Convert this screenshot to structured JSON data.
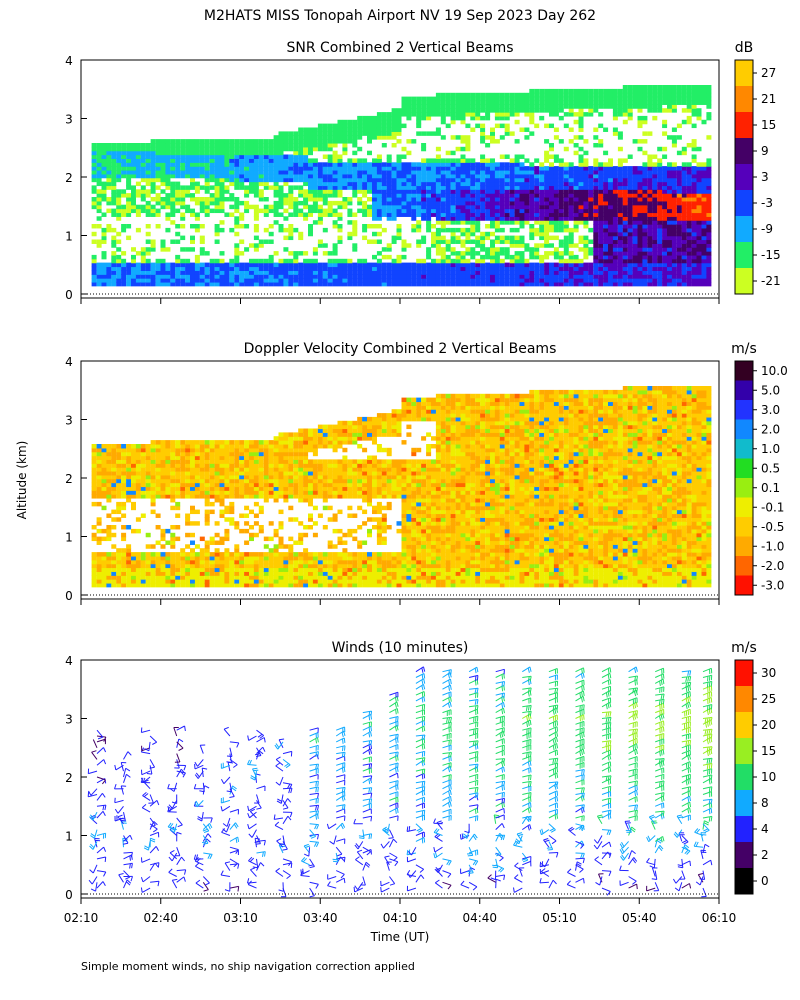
{
  "figure_title": "M2HATS MISS Tonopah Airport NV  19 Sep 2023 Day 262",
  "y_axis_label": "Altitude (km)",
  "x_axis_label": "Time (UT)",
  "footnote": "Simple moment winds, no ship navigation correction applied",
  "chart_data": [
    {
      "type": "heatmap",
      "title": "SNR Combined 2 Vertical Beams",
      "units": "dB",
      "ylabel": "Altitude (km)",
      "ylim": [
        0,
        4
      ],
      "yticks": [
        "0",
        "1",
        "2",
        "3",
        "4"
      ],
      "xlim_time": [
        "02:10",
        "06:10"
      ],
      "xticks": [
        "02:10",
        "02:40",
        "03:10",
        "03:40",
        "04:10",
        "04:40",
        "05:10",
        "05:40",
        "06:10"
      ],
      "xticks_labeled": false,
      "colorbar_labels": [
        "27",
        "21",
        "15",
        "9",
        "3",
        "-3",
        "-9",
        "-15",
        "-21"
      ],
      "colorbar_colors": [
        "#ffcc00",
        "#ff8800",
        "#ff2200",
        "#440066",
        "#5500bb",
        "#1144ff",
        "#11aaff",
        "#22ee66",
        "#ccff22"
      ],
      "value_range": [
        -21,
        30
      ]
    },
    {
      "type": "heatmap",
      "title": "Doppler Velocity Combined 2 Vertical Beams",
      "units": "m/s",
      "ylabel": "Altitude (km)",
      "ylim": [
        0,
        4
      ],
      "yticks": [
        "0",
        "1",
        "2",
        "3",
        "4"
      ],
      "xlim_time": [
        "02:10",
        "06:10"
      ],
      "xticks": [
        "02:10",
        "02:40",
        "03:10",
        "03:40",
        "04:10",
        "04:40",
        "05:10",
        "05:40",
        "06:10"
      ],
      "xticks_labeled": false,
      "colorbar_labels": [
        "10.0",
        "5.0",
        "3.0",
        "2.0",
        "1.0",
        "0.5",
        "0.1",
        "-0.1",
        "-0.5",
        "-1.0",
        "-2.0",
        "-3.0"
      ],
      "colorbar_colors": [
        "#330022",
        "#3300aa",
        "#2233ff",
        "#1188ff",
        "#11bbcc",
        "#22dd22",
        "#99ee11",
        "#eeee00",
        "#ffcc00",
        "#ffaa00",
        "#ff6600",
        "#ff1100"
      ],
      "dominant_range_ms": [
        -1.0,
        -0.1
      ]
    },
    {
      "type": "wind_barbs",
      "title": "Winds (10 minutes)",
      "units": "m/s",
      "ylabel": "Altitude (km)",
      "xlabel": "Time (UT)",
      "ylim": [
        0,
        4
      ],
      "yticks": [
        "0",
        "1",
        "2",
        "3",
        "4"
      ],
      "xlim_time": [
        "02:10",
        "06:10"
      ],
      "xticks": [
        "02:10",
        "02:40",
        "03:10",
        "03:40",
        "04:10",
        "04:40",
        "05:10",
        "05:40",
        "06:10"
      ],
      "xticks_labeled": true,
      "colorbar_labels": [
        "30",
        "25",
        "20",
        "15",
        "10",
        "8",
        "4",
        "2",
        "0"
      ],
      "colorbar_colors": [
        "#ff1100",
        "#ff8800",
        "#ffcc00",
        "#99ee22",
        "#22dd66",
        "#11aaff",
        "#2222ff",
        "#440066",
        "#000000"
      ],
      "profile_times": [
        "02:16",
        "02:26",
        "02:36",
        "02:46",
        "02:56",
        "03:06",
        "03:16",
        "03:26",
        "03:36",
        "03:46",
        "03:56",
        "04:06",
        "04:16",
        "04:26",
        "04:36",
        "04:46",
        "04:56",
        "05:06",
        "05:16",
        "05:26",
        "05:36",
        "05:46",
        "05:56",
        "06:04"
      ],
      "profile_top_km": [
        2.9,
        2.4,
        2.9,
        2.9,
        2.5,
        2.8,
        2.9,
        2.7,
        2.9,
        2.9,
        3.2,
        3.5,
        3.9,
        3.9,
        3.9,
        3.9,
        3.9,
        3.9,
        3.9,
        3.9,
        3.9,
        3.9,
        3.9,
        3.9
      ],
      "speed_ms_by_altitude": [
        {
          "alt_km": 0.2,
          "early": 6,
          "late": 5
        },
        {
          "alt_km": 1.0,
          "early": 7,
          "late": 9
        },
        {
          "alt_km": 2.0,
          "early": 5,
          "late": 13
        },
        {
          "alt_km": 3.0,
          "early": 3,
          "late": 18
        },
        {
          "alt_km": 3.8,
          "early": 3,
          "late": 12
        }
      ]
    }
  ]
}
